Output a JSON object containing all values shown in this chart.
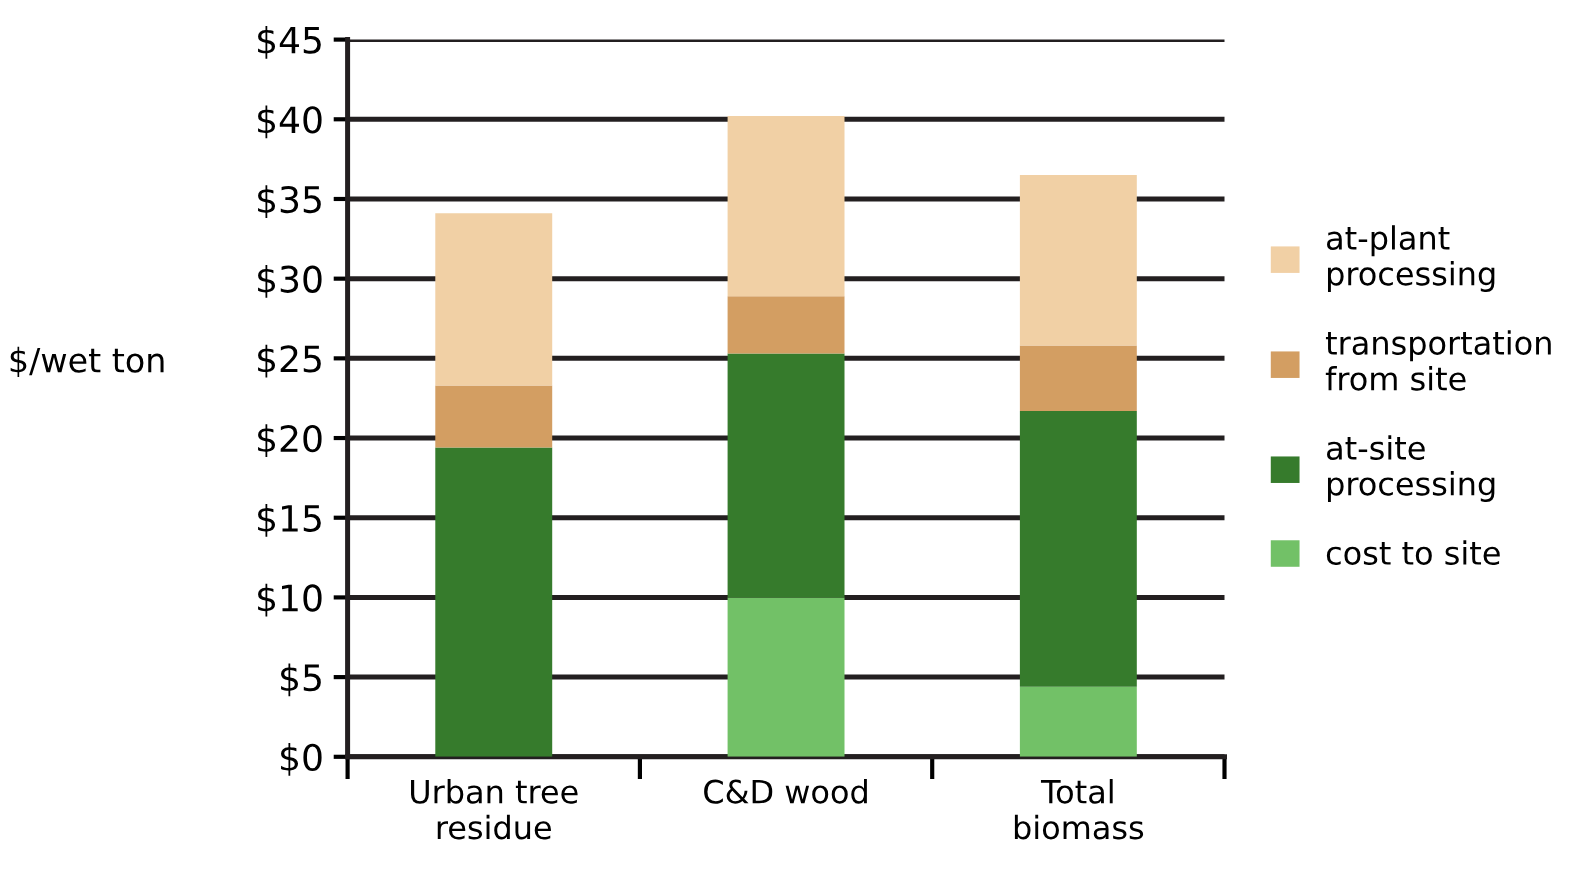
{
  "chart_data": {
    "type": "bar",
    "stacked": true,
    "ylabel": "$/wet ton",
    "categories": [
      "Urban tree\nresidue",
      "C&D wood",
      "Total\nbiomass"
    ],
    "series": [
      {
        "name": "cost to site",
        "color": "#72c167",
        "values": [
          0,
          10,
          4.4
        ]
      },
      {
        "name": "at-site\nprocessing",
        "color": "#367b2c",
        "values": [
          19.4,
          15.3,
          17.3
        ]
      },
      {
        "name": "transportation\nfrom site",
        "color": "#d39e62",
        "values": [
          3.9,
          3.6,
          4.1
        ]
      },
      {
        "name": "at-plant\nprocessing",
        "color": "#f1d0a5",
        "values": [
          10.8,
          11.3,
          10.7
        ]
      }
    ],
    "ylim": [
      0,
      45
    ],
    "yticks": [
      {
        "value": 0,
        "label": "$0"
      },
      {
        "value": 5,
        "label": "$5"
      },
      {
        "value": 10,
        "label": "$10"
      },
      {
        "value": 15,
        "label": "$15"
      },
      {
        "value": 20,
        "label": "$20"
      },
      {
        "value": 25,
        "label": "$25"
      },
      {
        "value": 30,
        "label": "$30"
      },
      {
        "value": 35,
        "label": "$35"
      },
      {
        "value": 40,
        "label": "$40"
      },
      {
        "value": 45,
        "label": "$45"
      }
    ],
    "grid": "y",
    "legend": "right"
  }
}
